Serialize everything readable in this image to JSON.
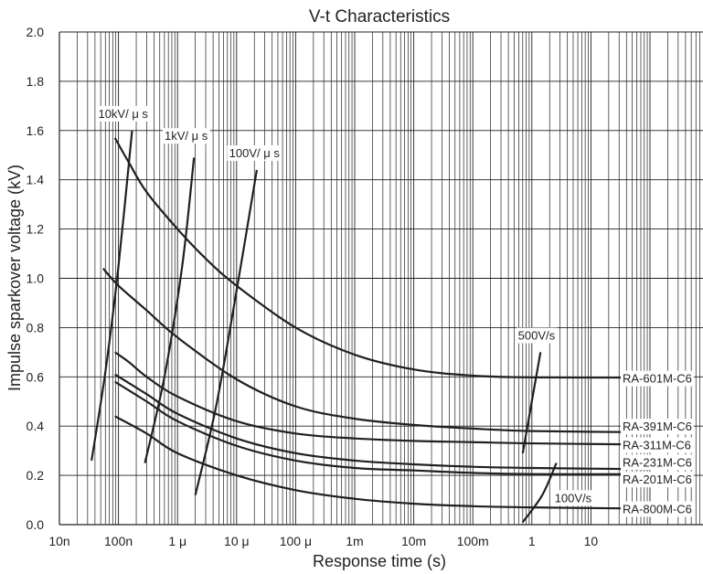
{
  "chart_data": {
    "type": "line",
    "title": "V-t Characteristics",
    "xlabel": "Response time (s)",
    "ylabel": "Impulse sparkover voltage (kV)",
    "x_scale": "log",
    "xlim": [
      1e-08,
      1000
    ],
    "ylim": [
      0,
      2.0
    ],
    "grid": true,
    "x_ticks": [
      {
        "value": 1e-08,
        "label": "10n"
      },
      {
        "value": 1e-07,
        "label": "100n"
      },
      {
        "value": 1e-06,
        "label": "1 μ"
      },
      {
        "value": 1e-05,
        "label": "10 μ"
      },
      {
        "value": 0.0001,
        "label": "100 μ"
      },
      {
        "value": 0.001,
        "label": "1m"
      },
      {
        "value": 0.01,
        "label": "10m"
      },
      {
        "value": 0.1,
        "label": "100m"
      },
      {
        "value": 1,
        "label": "1"
      },
      {
        "value": 10,
        "label": "10"
      }
    ],
    "y_ticks": [
      {
        "value": 0.0,
        "label": "0.0"
      },
      {
        "value": 0.2,
        "label": "0.2"
      },
      {
        "value": 0.4,
        "label": "0.4"
      },
      {
        "value": 0.6,
        "label": "0.6"
      },
      {
        "value": 0.8,
        "label": "0.8"
      },
      {
        "value": 1.0,
        "label": "1.0"
      },
      {
        "value": 1.2,
        "label": "1.2"
      },
      {
        "value": 1.4,
        "label": "1.4"
      },
      {
        "value": 1.6,
        "label": "1.6"
      },
      {
        "value": 1.8,
        "label": "1.8"
      },
      {
        "value": 2.0,
        "label": "2.0"
      }
    ],
    "series": [
      {
        "name": "RA-601M-C6",
        "points": [
          [
            8.7e-08,
            1.57
          ],
          [
            1.5e-07,
            1.47
          ],
          [
            3e-07,
            1.35
          ],
          [
            1e-06,
            1.2
          ],
          [
            3e-06,
            1.08
          ],
          [
            1e-05,
            0.97
          ],
          [
            0.0001,
            0.8
          ],
          [
            0.001,
            0.69
          ],
          [
            0.01,
            0.63
          ],
          [
            0.1,
            0.605
          ],
          [
            1,
            0.598
          ],
          [
            100,
            0.597
          ]
        ]
      },
      {
        "name": "RA-391M-C6",
        "points": [
          [
            5.5e-08,
            1.04
          ],
          [
            1e-07,
            0.97
          ],
          [
            3e-07,
            0.87
          ],
          [
            1e-06,
            0.76
          ],
          [
            1e-05,
            0.59
          ],
          [
            0.0001,
            0.48
          ],
          [
            0.001,
            0.43
          ],
          [
            0.01,
            0.405
          ],
          [
            0.1,
            0.39
          ],
          [
            1,
            0.38
          ],
          [
            100,
            0.375
          ]
        ]
      },
      {
        "name": "RA-311M-C6",
        "points": [
          [
            8.7e-08,
            0.7
          ],
          [
            1.5e-07,
            0.66
          ],
          [
            3e-07,
            0.6
          ],
          [
            1e-06,
            0.52
          ],
          [
            1e-05,
            0.42
          ],
          [
            0.0001,
            0.37
          ],
          [
            0.001,
            0.35
          ],
          [
            0.01,
            0.34
          ],
          [
            0.1,
            0.335
          ],
          [
            1,
            0.33
          ],
          [
            100,
            0.325
          ]
        ]
      },
      {
        "name": "RA-231M-C6",
        "points": [
          [
            8.7e-08,
            0.61
          ],
          [
            3e-07,
            0.53
          ],
          [
            1e-06,
            0.45
          ],
          [
            1e-05,
            0.35
          ],
          [
            0.0001,
            0.29
          ],
          [
            0.001,
            0.26
          ],
          [
            0.01,
            0.245
          ],
          [
            0.1,
            0.235
          ],
          [
            1,
            0.23
          ],
          [
            100,
            0.225
          ]
        ]
      },
      {
        "name": "RA-201M-C6",
        "points": [
          [
            8.7e-08,
            0.58
          ],
          [
            3e-07,
            0.5
          ],
          [
            1e-06,
            0.42
          ],
          [
            1e-05,
            0.32
          ],
          [
            0.0001,
            0.26
          ],
          [
            0.001,
            0.23
          ],
          [
            0.01,
            0.22
          ],
          [
            0.1,
            0.21
          ],
          [
            1,
            0.205
          ],
          [
            100,
            0.205
          ]
        ]
      },
      {
        "name": "RA-800M-C6",
        "points": [
          [
            8.7e-08,
            0.44
          ],
          [
            3e-07,
            0.37
          ],
          [
            1e-06,
            0.29
          ],
          [
            1e-05,
            0.2
          ],
          [
            0.0001,
            0.14
          ],
          [
            0.001,
            0.105
          ],
          [
            0.01,
            0.085
          ],
          [
            0.1,
            0.075
          ],
          [
            1,
            0.07
          ],
          [
            100,
            0.065
          ]
        ]
      }
    ],
    "rate_lines": [
      {
        "name": "10kV/ μ s",
        "points": [
          [
            3.5e-08,
            0.26
          ],
          [
            6e-08,
            0.62
          ],
          [
            1e-07,
            1.05
          ],
          [
            1.7e-07,
            1.6
          ]
        ]
      },
      {
        "name": "1kV/ μ s",
        "points": [
          [
            2.8e-07,
            0.25
          ],
          [
            6e-07,
            0.6
          ],
          [
            1.2e-06,
            1.05
          ],
          [
            1.9e-06,
            1.49
          ]
        ]
      },
      {
        "name": "100V/ μ s",
        "points": [
          [
            2e-06,
            0.12
          ],
          [
            4.5e-06,
            0.48
          ],
          [
            1e-05,
            0.95
          ],
          [
            2.2e-05,
            1.44
          ]
        ]
      },
      {
        "name": "500V/s",
        "points": [
          [
            0.7,
            0.29
          ],
          [
            1.4,
            0.7
          ]
        ]
      },
      {
        "name": "100V/s",
        "points": [
          [
            0.7,
            0.01
          ],
          [
            1.5,
            0.12
          ],
          [
            2.6,
            0.25
          ]
        ]
      }
    ]
  }
}
